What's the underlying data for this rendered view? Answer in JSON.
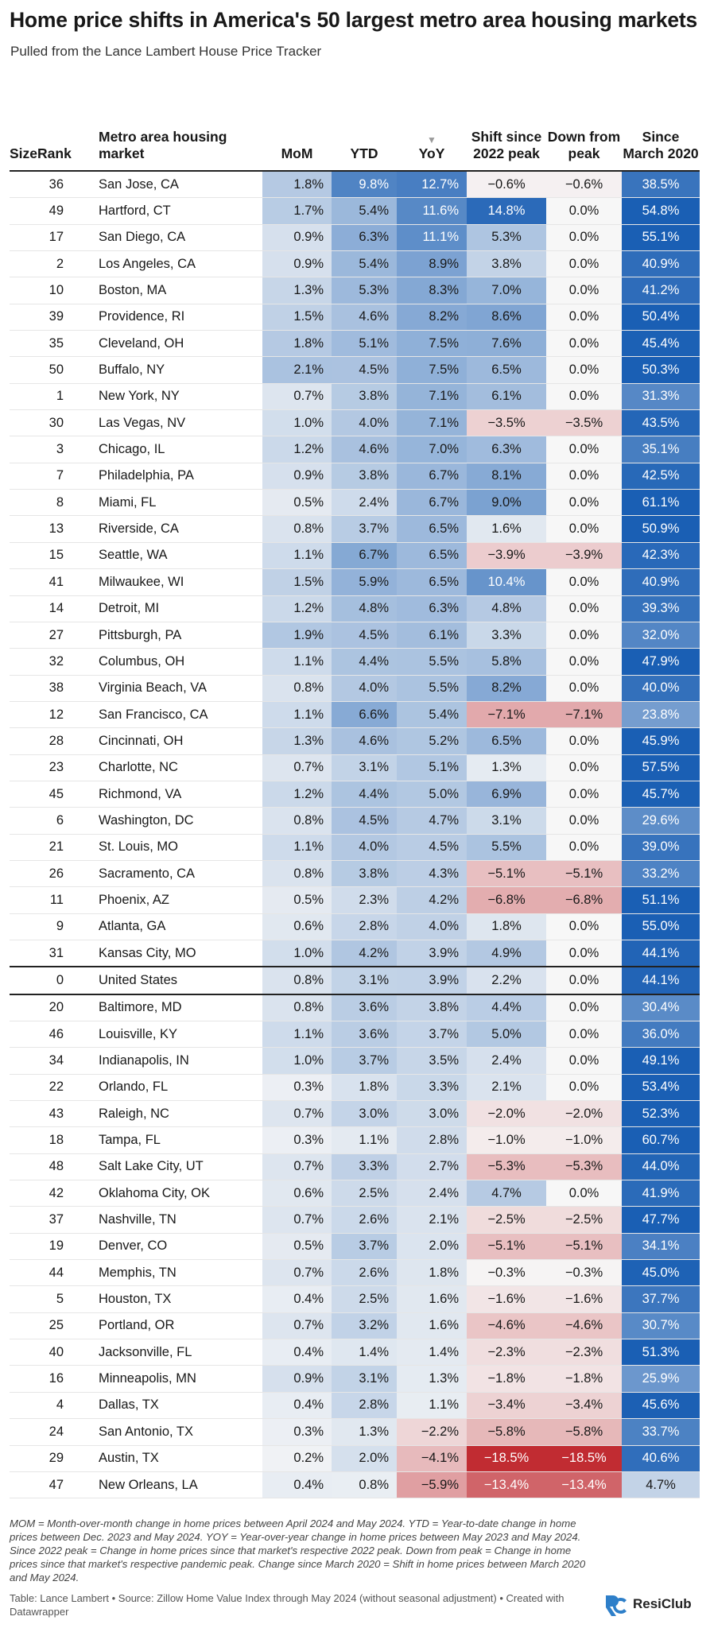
{
  "title": "Home price shifts in America's 50 largest metro area housing markets",
  "subtitle": "Pulled from the Lance Lambert House Price Tracker",
  "headers": {
    "rank": "SizeRank",
    "metro": "Metro area housing market",
    "mom": "MoM",
    "ytd": "YTD",
    "yoy_arrow": "▼",
    "yoy": "YoY",
    "shift": "Shift since 2022 peak",
    "down": "Down from peak",
    "since": "Since March 2020"
  },
  "chart_data": {
    "type": "table",
    "columns": [
      "SizeRank",
      "Metro area housing market",
      "MoM",
      "YTD",
      "YoY",
      "Shift since 2022 peak",
      "Down from peak",
      "Since March 2020"
    ],
    "sort_column": "YoY",
    "sort_order": "descending",
    "colors": {
      "positive_strong": "#1a5fb4",
      "neutral": "#f7f7f7",
      "negative_strong": "#c0272d",
      "divider": "#222222"
    },
    "rows": [
      [
        "36",
        "San Jose, CA",
        "1.8%",
        "9.8%",
        "12.7%",
        "−0.6%",
        "−0.6%",
        "38.5%"
      ],
      [
        "49",
        "Hartford, CT",
        "1.7%",
        "5.4%",
        "11.6%",
        "14.8%",
        "0.0%",
        "54.8%"
      ],
      [
        "17",
        "San Diego, CA",
        "0.9%",
        "6.3%",
        "11.1%",
        "5.3%",
        "0.0%",
        "55.1%"
      ],
      [
        "2",
        "Los Angeles, CA",
        "0.9%",
        "5.4%",
        "8.9%",
        "3.8%",
        "0.0%",
        "40.9%"
      ],
      [
        "10",
        "Boston, MA",
        "1.3%",
        "5.3%",
        "8.3%",
        "7.0%",
        "0.0%",
        "41.2%"
      ],
      [
        "39",
        "Providence, RI",
        "1.5%",
        "4.6%",
        "8.2%",
        "8.6%",
        "0.0%",
        "50.4%"
      ],
      [
        "35",
        "Cleveland, OH",
        "1.8%",
        "5.1%",
        "7.5%",
        "7.6%",
        "0.0%",
        "45.4%"
      ],
      [
        "50",
        "Buffalo, NY",
        "2.1%",
        "4.5%",
        "7.5%",
        "6.5%",
        "0.0%",
        "50.3%"
      ],
      [
        "1",
        "New York, NY",
        "0.7%",
        "3.8%",
        "7.1%",
        "6.1%",
        "0.0%",
        "31.3%"
      ],
      [
        "30",
        "Las Vegas, NV",
        "1.0%",
        "4.0%",
        "7.1%",
        "−3.5%",
        "−3.5%",
        "43.5%"
      ],
      [
        "3",
        "Chicago, IL",
        "1.2%",
        "4.6%",
        "7.0%",
        "6.3%",
        "0.0%",
        "35.1%"
      ],
      [
        "7",
        "Philadelphia, PA",
        "0.9%",
        "3.8%",
        "6.7%",
        "8.1%",
        "0.0%",
        "42.5%"
      ],
      [
        "8",
        "Miami, FL",
        "0.5%",
        "2.4%",
        "6.7%",
        "9.0%",
        "0.0%",
        "61.1%"
      ],
      [
        "13",
        "Riverside, CA",
        "0.8%",
        "3.7%",
        "6.5%",
        "1.6%",
        "0.0%",
        "50.9%"
      ],
      [
        "15",
        "Seattle, WA",
        "1.1%",
        "6.7%",
        "6.5%",
        "−3.9%",
        "−3.9%",
        "42.3%"
      ],
      [
        "41",
        "Milwaukee, WI",
        "1.5%",
        "5.9%",
        "6.5%",
        "10.4%",
        "0.0%",
        "40.9%"
      ],
      [
        "14",
        "Detroit, MI",
        "1.2%",
        "4.8%",
        "6.3%",
        "4.8%",
        "0.0%",
        "39.3%"
      ],
      [
        "27",
        "Pittsburgh, PA",
        "1.9%",
        "4.5%",
        "6.1%",
        "3.3%",
        "0.0%",
        "32.0%"
      ],
      [
        "32",
        "Columbus, OH",
        "1.1%",
        "4.4%",
        "5.5%",
        "5.8%",
        "0.0%",
        "47.9%"
      ],
      [
        "38",
        "Virginia Beach, VA",
        "0.8%",
        "4.0%",
        "5.5%",
        "8.2%",
        "0.0%",
        "40.0%"
      ],
      [
        "12",
        "San Francisco, CA",
        "1.1%",
        "6.6%",
        "5.4%",
        "−7.1%",
        "−7.1%",
        "23.8%"
      ],
      [
        "28",
        "Cincinnati, OH",
        "1.3%",
        "4.6%",
        "5.2%",
        "6.5%",
        "0.0%",
        "45.9%"
      ],
      [
        "23",
        "Charlotte, NC",
        "0.7%",
        "3.1%",
        "5.1%",
        "1.3%",
        "0.0%",
        "57.5%"
      ],
      [
        "45",
        "Richmond, VA",
        "1.2%",
        "4.4%",
        "5.0%",
        "6.9%",
        "0.0%",
        "45.7%"
      ],
      [
        "6",
        "Washington, DC",
        "0.8%",
        "4.5%",
        "4.7%",
        "3.1%",
        "0.0%",
        "29.6%"
      ],
      [
        "21",
        "St. Louis, MO",
        "1.1%",
        "4.0%",
        "4.5%",
        "5.5%",
        "0.0%",
        "39.0%"
      ],
      [
        "26",
        "Sacramento, CA",
        "0.8%",
        "3.8%",
        "4.3%",
        "−5.1%",
        "−5.1%",
        "33.2%"
      ],
      [
        "11",
        "Phoenix, AZ",
        "0.5%",
        "2.3%",
        "4.2%",
        "−6.8%",
        "−6.8%",
        "51.1%"
      ],
      [
        "9",
        "Atlanta, GA",
        "0.6%",
        "2.8%",
        "4.0%",
        "1.8%",
        "0.0%",
        "55.0%"
      ],
      [
        "31",
        "Kansas City, MO",
        "1.0%",
        "4.2%",
        "3.9%",
        "4.9%",
        "0.0%",
        "44.1%"
      ],
      [
        "0",
        "United States",
        "0.8%",
        "3.1%",
        "3.9%",
        "2.2%",
        "0.0%",
        "44.1%"
      ],
      [
        "20",
        "Baltimore, MD",
        "0.8%",
        "3.6%",
        "3.8%",
        "4.4%",
        "0.0%",
        "30.4%"
      ],
      [
        "46",
        "Louisville, KY",
        "1.1%",
        "3.6%",
        "3.7%",
        "5.0%",
        "0.0%",
        "36.0%"
      ],
      [
        "34",
        "Indianapolis, IN",
        "1.0%",
        "3.7%",
        "3.5%",
        "2.4%",
        "0.0%",
        "49.1%"
      ],
      [
        "22",
        "Orlando, FL",
        "0.3%",
        "1.8%",
        "3.3%",
        "2.1%",
        "0.0%",
        "53.4%"
      ],
      [
        "43",
        "Raleigh, NC",
        "0.7%",
        "3.0%",
        "3.0%",
        "−2.0%",
        "−2.0%",
        "52.3%"
      ],
      [
        "18",
        "Tampa, FL",
        "0.3%",
        "1.1%",
        "2.8%",
        "−1.0%",
        "−1.0%",
        "60.7%"
      ],
      [
        "48",
        "Salt Lake City, UT",
        "0.7%",
        "3.3%",
        "2.7%",
        "−5.3%",
        "−5.3%",
        "44.0%"
      ],
      [
        "42",
        "Oklahoma City, OK",
        "0.6%",
        "2.5%",
        "2.4%",
        "4.7%",
        "0.0%",
        "41.9%"
      ],
      [
        "37",
        "Nashville, TN",
        "0.7%",
        "2.6%",
        "2.1%",
        "−2.5%",
        "−2.5%",
        "47.7%"
      ],
      [
        "19",
        "Denver, CO",
        "0.5%",
        "3.7%",
        "2.0%",
        "−5.1%",
        "−5.1%",
        "34.1%"
      ],
      [
        "44",
        "Memphis, TN",
        "0.7%",
        "2.6%",
        "1.8%",
        "−0.3%",
        "−0.3%",
        "45.0%"
      ],
      [
        "5",
        "Houston, TX",
        "0.4%",
        "2.5%",
        "1.6%",
        "−1.6%",
        "−1.6%",
        "37.7%"
      ],
      [
        "25",
        "Portland, OR",
        "0.7%",
        "3.2%",
        "1.6%",
        "−4.6%",
        "−4.6%",
        "30.7%"
      ],
      [
        "40",
        "Jacksonville, FL",
        "0.4%",
        "1.4%",
        "1.4%",
        "−2.3%",
        "−2.3%",
        "51.3%"
      ],
      [
        "16",
        "Minneapolis, MN",
        "0.9%",
        "3.1%",
        "1.3%",
        "−1.8%",
        "−1.8%",
        "25.9%"
      ],
      [
        "4",
        "Dallas, TX",
        "0.4%",
        "2.8%",
        "1.1%",
        "−3.4%",
        "−3.4%",
        "45.6%"
      ],
      [
        "24",
        "San Antonio, TX",
        "0.3%",
        "1.3%",
        "−2.2%",
        "−5.8%",
        "−5.8%",
        "33.7%"
      ],
      [
        "29",
        "Austin, TX",
        "0.2%",
        "2.0%",
        "−4.1%",
        "−18.5%",
        "−18.5%",
        "40.6%"
      ],
      [
        "47",
        "New Orleans, LA",
        "0.4%",
        "0.8%",
        "−5.9%",
        "−13.4%",
        "−13.4%",
        "4.7%"
      ]
    ]
  },
  "footnote": "MOM = Month-over-month change in home prices between April 2024 and May 2024. YTD = Year-to-date change in home prices between Dec. 2023 and May 2024. YOY = Year-over-year change in home prices between May 2023 and May 2024. Since 2022 peak = Change in home prices since that market's respective 2022 peak. Down from peak = Change in home prices since that market's respective pandemic peak. Change since March 2020 = Shift in home prices between March 2020 and May 2024.",
  "source": "Table: Lance Lambert • Source: Zillow Home Value Index through May 2024 (without seasonal adjustment) • Created with Datawrapper",
  "logo": {
    "text": "ResiClub",
    "icon": "resiclub-logo-icon",
    "color": "#2e7fc9"
  }
}
